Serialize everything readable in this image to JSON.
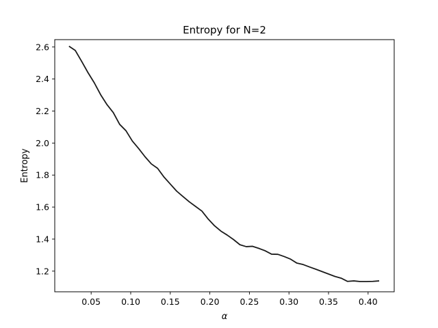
{
  "chart_data": {
    "type": "line",
    "title": "Entropy for N=2",
    "xlabel": "α",
    "ylabel": "Entropy",
    "xlim": [
      0.004,
      0.433
    ],
    "ylim": [
      1.071,
      2.646
    ],
    "grid": false,
    "x_ticks": [
      "0.05",
      "0.10",
      "0.15",
      "0.20",
      "0.25",
      "0.30",
      "0.35",
      "0.40"
    ],
    "y_ticks": [
      "1.2",
      "1.4",
      "1.6",
      "1.8",
      "2.0",
      "2.2",
      "2.4",
      "2.6"
    ],
    "series": [
      {
        "color": "#1a1a1a",
        "x": [
          0.022,
          0.03,
          0.038,
          0.046,
          0.054,
          0.062,
          0.07,
          0.078,
          0.086,
          0.094,
          0.102,
          0.11,
          0.118,
          0.126,
          0.134,
          0.142,
          0.15,
          0.158,
          0.166,
          0.174,
          0.182,
          0.19,
          0.198,
          0.206,
          0.214,
          0.222,
          0.23,
          0.238,
          0.246,
          0.254,
          0.262,
          0.27,
          0.278,
          0.286,
          0.294,
          0.302,
          0.31,
          0.318,
          0.326,
          0.334,
          0.342,
          0.35,
          0.358,
          0.366,
          0.374,
          0.382,
          0.39,
          0.398,
          0.406,
          0.414
        ],
        "y": [
          2.605,
          2.578,
          2.51,
          2.44,
          2.376,
          2.302,
          2.24,
          2.19,
          2.117,
          2.077,
          2.013,
          1.966,
          1.915,
          1.87,
          1.842,
          1.788,
          1.744,
          1.7,
          1.666,
          1.633,
          1.604,
          1.575,
          1.525,
          1.483,
          1.45,
          1.425,
          1.397,
          1.365,
          1.353,
          1.355,
          1.342,
          1.327,
          1.306,
          1.305,
          1.291,
          1.275,
          1.25,
          1.241,
          1.226,
          1.212,
          1.197,
          1.182,
          1.167,
          1.156,
          1.136,
          1.139,
          1.135,
          1.135,
          1.136,
          1.139
        ]
      }
    ]
  }
}
